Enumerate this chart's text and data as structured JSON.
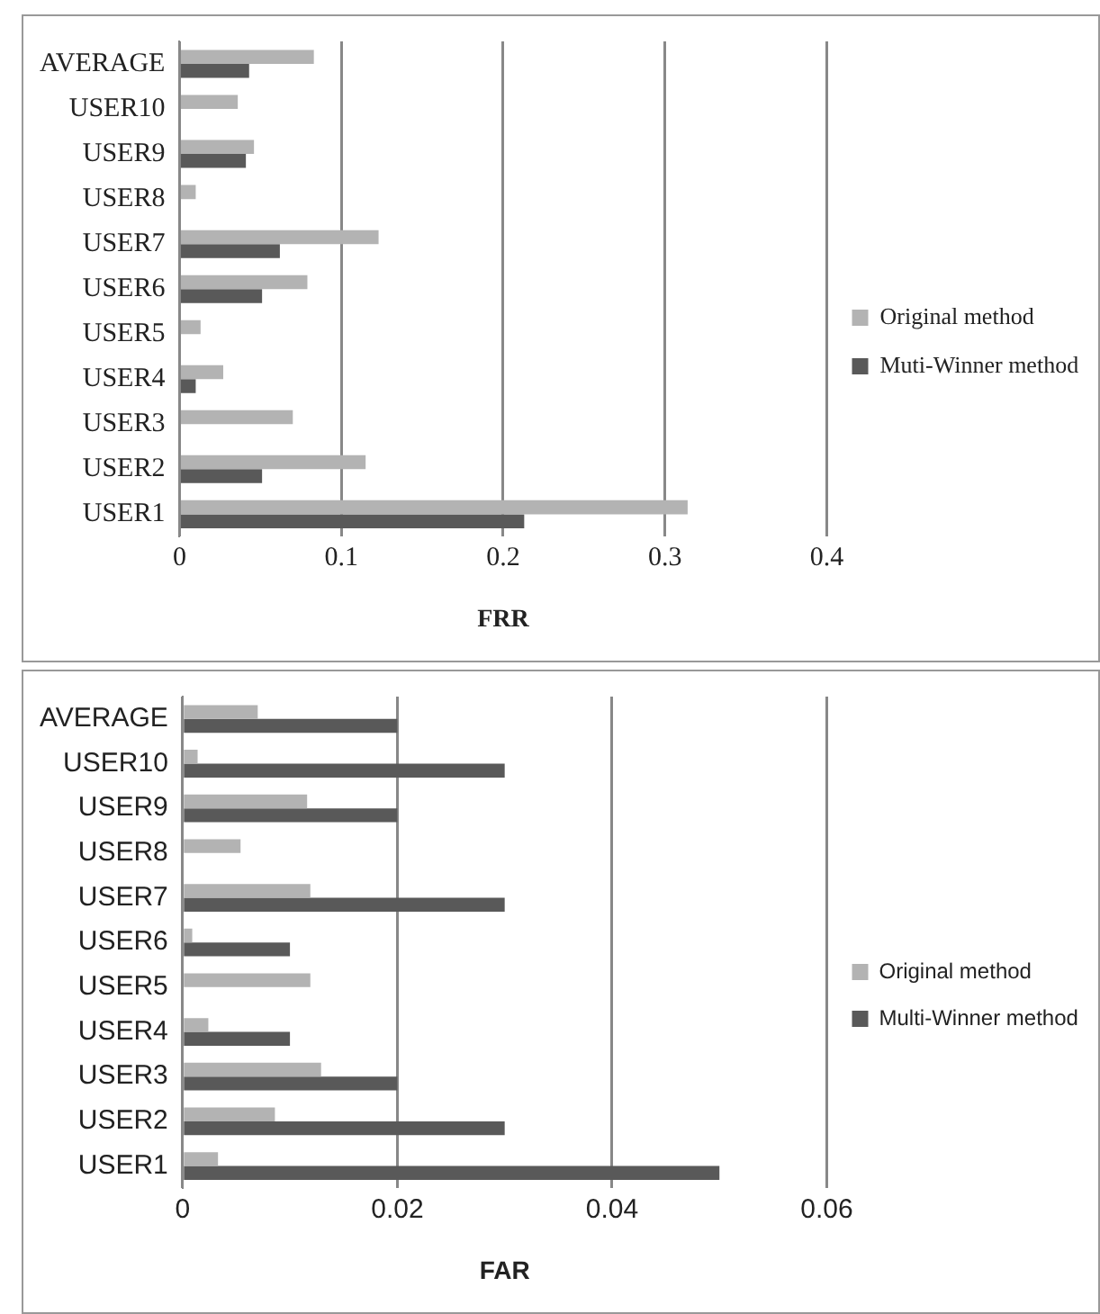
{
  "chart_data": [
    {
      "type": "bar",
      "orientation": "horizontal",
      "xlabel": "FRR",
      "categories": [
        "AVERAGE",
        "USER10",
        "USER9",
        "USER8",
        "USER7",
        "USER6",
        "USER5",
        "USER4",
        "USER3",
        "USER2",
        "USER1"
      ],
      "series": [
        {
          "name": "Original method",
          "color": "#b3b3b3",
          "values": [
            0.083,
            0.036,
            0.046,
            0.01,
            0.123,
            0.079,
            0.013,
            0.027,
            0.07,
            0.115,
            0.314
          ]
        },
        {
          "name": "Muti-Winner method",
          "color": "#595959",
          "values": [
            0.043,
            0,
            0.041,
            0,
            0.062,
            0.051,
            0,
            0.01,
            0,
            0.051,
            0.213
          ]
        }
      ],
      "xlim": [
        0,
        0.4
      ],
      "xticks": [
        0,
        0.1,
        0.2,
        0.3,
        0.4
      ],
      "grid": "x",
      "legend": "right"
    },
    {
      "type": "bar",
      "orientation": "horizontal",
      "xlabel": "FAR",
      "categories": [
        "AVERAGE",
        "USER10",
        "USER9",
        "USER8",
        "USER7",
        "USER6",
        "USER5",
        "USER4",
        "USER3",
        "USER2",
        "USER1"
      ],
      "series": [
        {
          "name": "Original method",
          "color": "#b3b3b3",
          "values": [
            0.007,
            0.0014,
            0.0116,
            0.0054,
            0.0119,
            0.0009,
            0.0119,
            0.0024,
            0.0129,
            0.0086,
            0.0033
          ]
        },
        {
          "name": "Multi-Winner method",
          "color": "#595959",
          "values": [
            0.02,
            0.03,
            0.02,
            0,
            0.03,
            0.01,
            0,
            0.01,
            0.02,
            0.03,
            0.05
          ]
        }
      ],
      "xlim": [
        0,
        0.06
      ],
      "xticks": [
        0,
        0.02,
        0.04,
        0.06
      ],
      "grid": "x",
      "legend": "right"
    }
  ]
}
